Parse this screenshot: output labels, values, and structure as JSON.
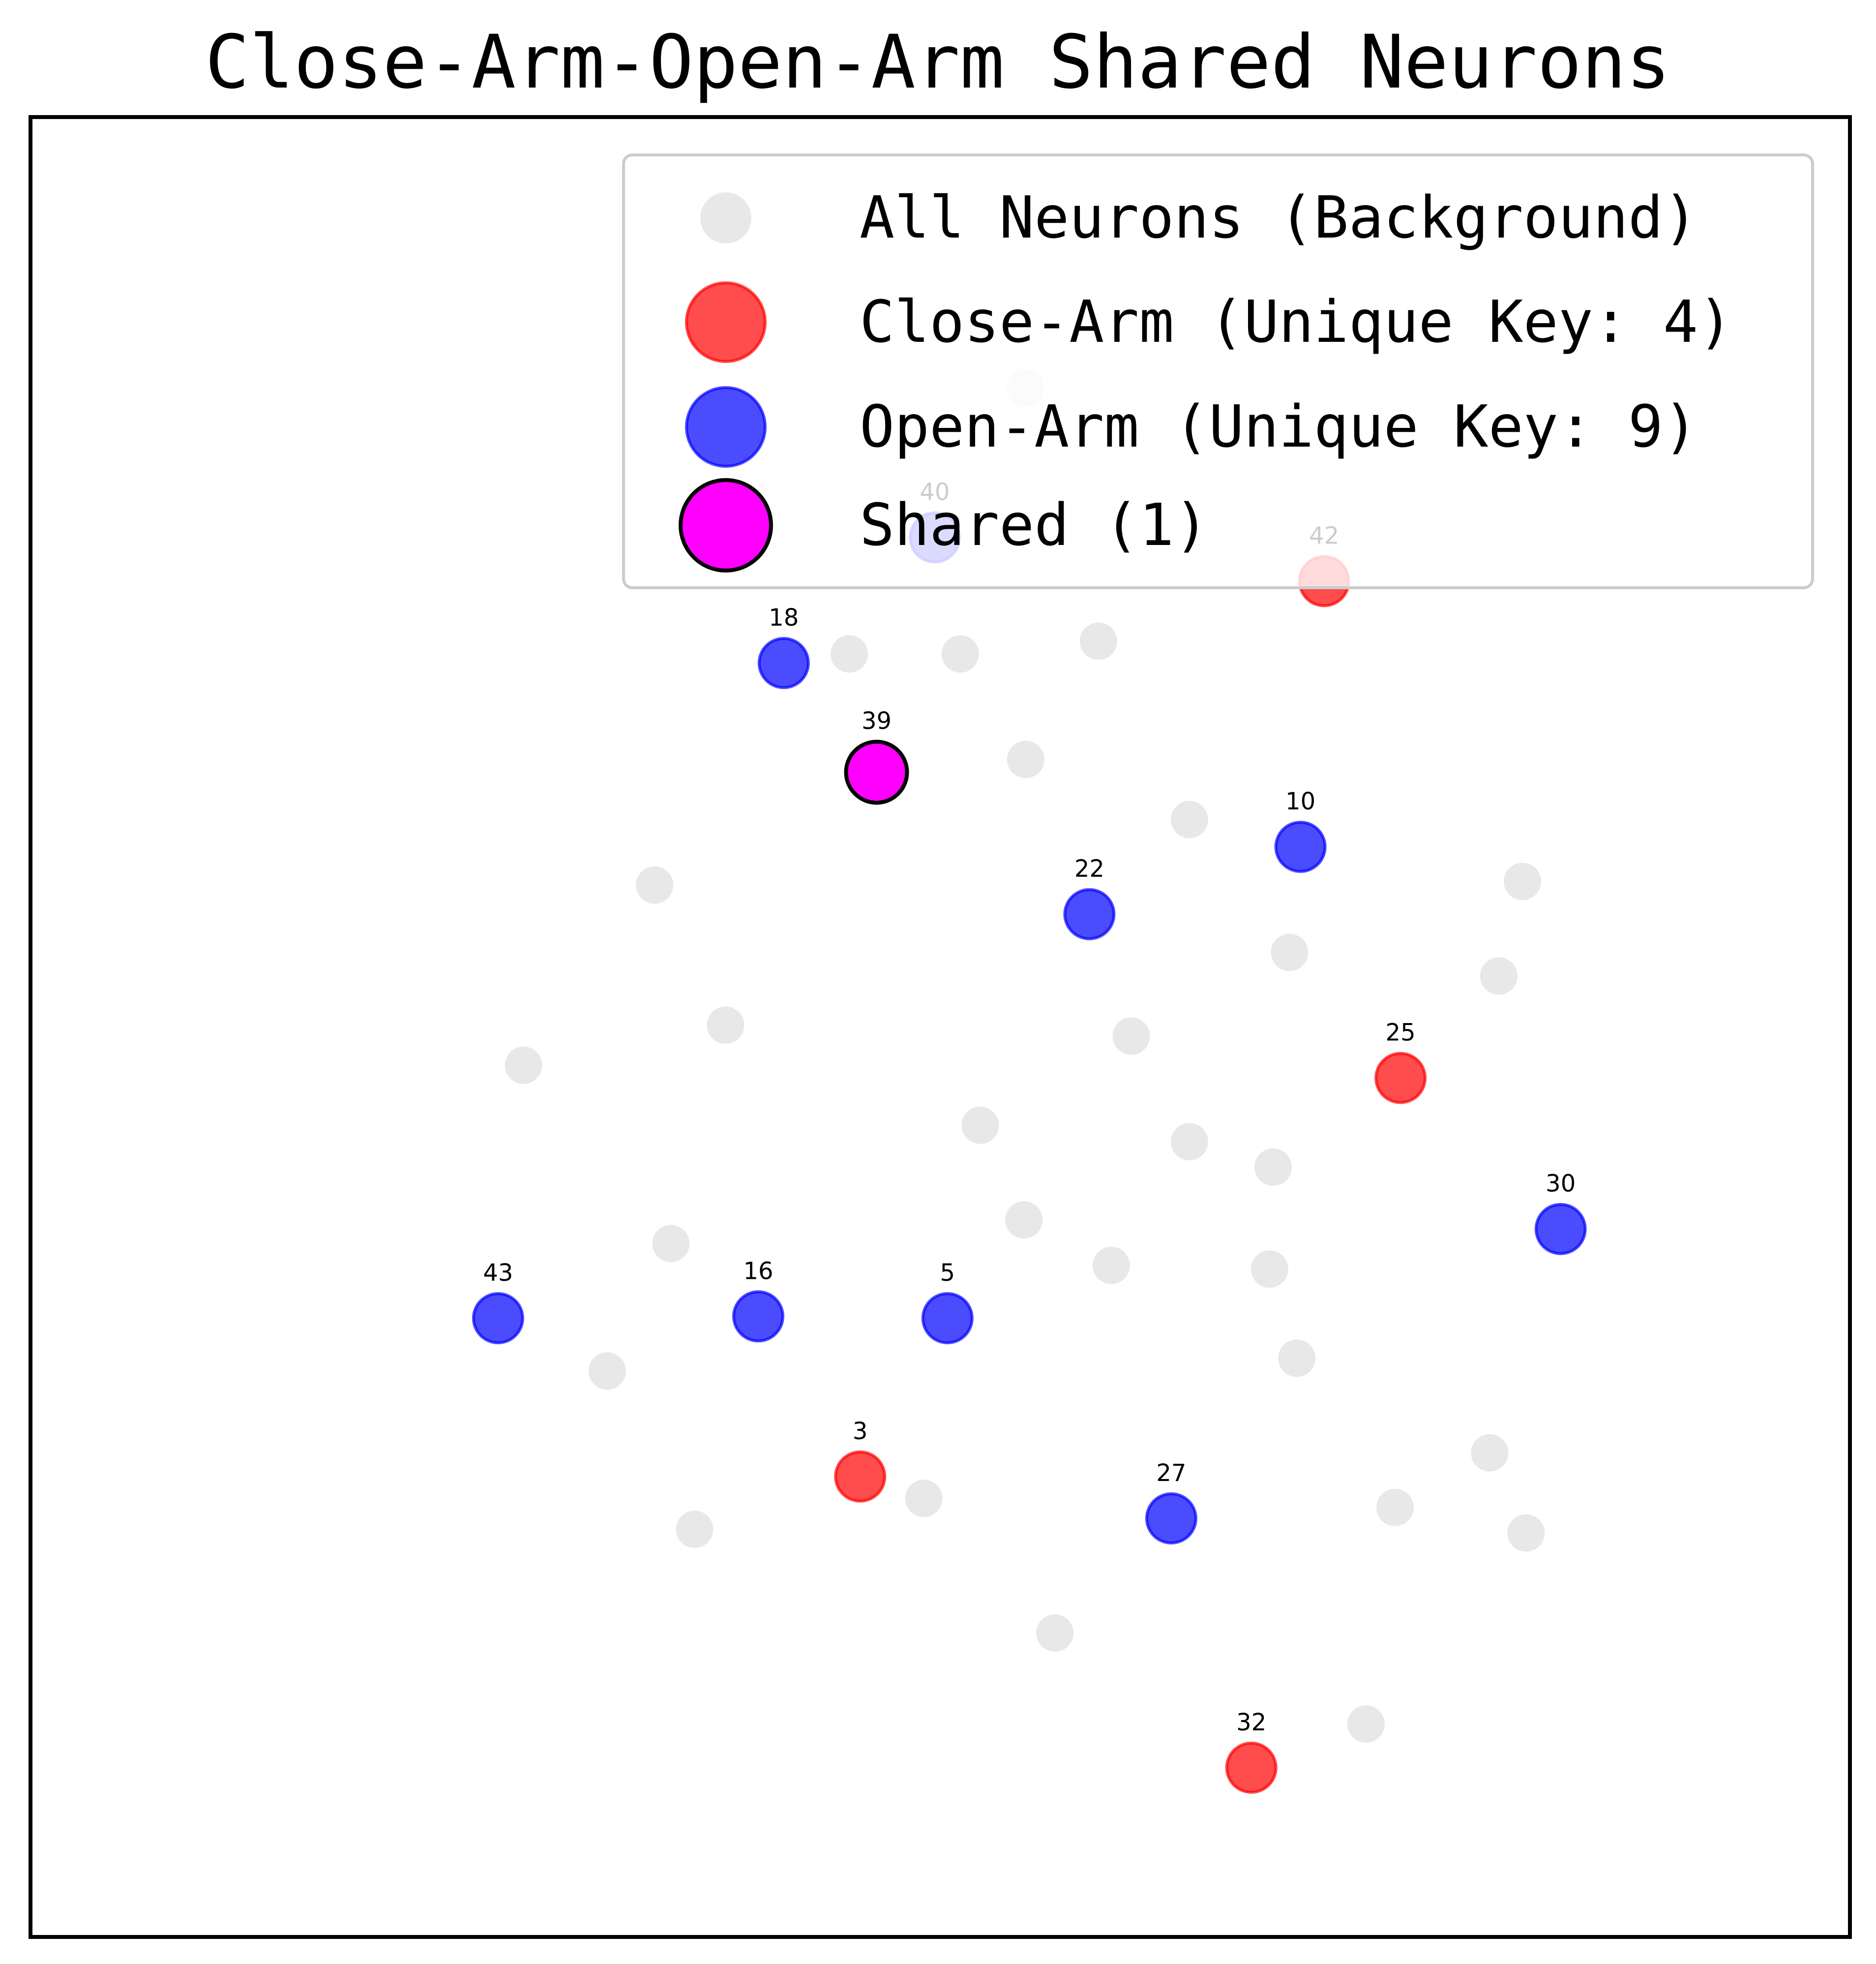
{
  "chart_data": {
    "type": "scatter",
    "title": "Close-Arm-Open-Arm Shared Neurons",
    "xlabel": "",
    "ylabel": "",
    "xlim": [
      0,
      1000
    ],
    "ylim": [
      0,
      1000
    ],
    "grid": false,
    "axis_ticks": false,
    "legend_position": "top-right",
    "colors": {
      "background": "#e6e6e6",
      "close_arm": "#ff0000",
      "open_arm": "#0000ff",
      "shared": "#ff00ff"
    },
    "legend": [
      {
        "key": "background",
        "label": "All Neurons (Background)"
      },
      {
        "key": "close_arm",
        "label": "Close-Arm (Unique Key: 4)"
      },
      {
        "key": "open_arm",
        "label": "Open-Arm (Unique Key: 9)"
      },
      {
        "key": "shared",
        "label": "Shared (1)"
      }
    ],
    "series": [
      {
        "key": "background",
        "points": [
          {
            "x": 547,
            "y": 851
          },
          {
            "x": 450,
            "y": 705
          },
          {
            "x": 511,
            "y": 705
          },
          {
            "x": 587,
            "y": 712
          },
          {
            "x": 547,
            "y": 647
          },
          {
            "x": 637,
            "y": 614
          },
          {
            "x": 343,
            "y": 578
          },
          {
            "x": 820,
            "y": 580
          },
          {
            "x": 692,
            "y": 541
          },
          {
            "x": 807,
            "y": 528
          },
          {
            "x": 382,
            "y": 501
          },
          {
            "x": 605,
            "y": 495
          },
          {
            "x": 271,
            "y": 479
          },
          {
            "x": 522,
            "y": 446
          },
          {
            "x": 637,
            "y": 437
          },
          {
            "x": 683,
            "y": 423
          },
          {
            "x": 546,
            "y": 394
          },
          {
            "x": 352,
            "y": 381
          },
          {
            "x": 594,
            "y": 369
          },
          {
            "x": 681,
            "y": 367
          },
          {
            "x": 317,
            "y": 311
          },
          {
            "x": 696,
            "y": 318
          },
          {
            "x": 802,
            "y": 266
          },
          {
            "x": 491,
            "y": 241
          },
          {
            "x": 750,
            "y": 236
          },
          {
            "x": 365,
            "y": 224
          },
          {
            "x": 822,
            "y": 222
          },
          {
            "x": 563,
            "y": 167
          },
          {
            "x": 734,
            "y": 117
          }
        ]
      },
      {
        "key": "close_arm",
        "points": [
          {
            "x": 711,
            "y": 745,
            "label": "42"
          },
          {
            "x": 753,
            "y": 472,
            "label": "25"
          },
          {
            "x": 456,
            "y": 253,
            "label": "3"
          },
          {
            "x": 671,
            "y": 93,
            "label": "32"
          }
        ]
      },
      {
        "key": "open_arm",
        "points": [
          {
            "x": 497,
            "y": 769,
            "label": "40"
          },
          {
            "x": 414,
            "y": 700,
            "label": "18"
          },
          {
            "x": 698,
            "y": 599,
            "label": "10"
          },
          {
            "x": 582,
            "y": 562,
            "label": "22"
          },
          {
            "x": 841,
            "y": 389,
            "label": "30"
          },
          {
            "x": 257,
            "y": 340,
            "label": "43"
          },
          {
            "x": 400,
            "y": 341,
            "label": "16"
          },
          {
            "x": 504,
            "y": 340,
            "label": "5"
          },
          {
            "x": 627,
            "y": 230,
            "label": "27"
          }
        ]
      },
      {
        "key": "shared",
        "points": [
          {
            "x": 465,
            "y": 640,
            "label": "39"
          }
        ]
      }
    ]
  }
}
